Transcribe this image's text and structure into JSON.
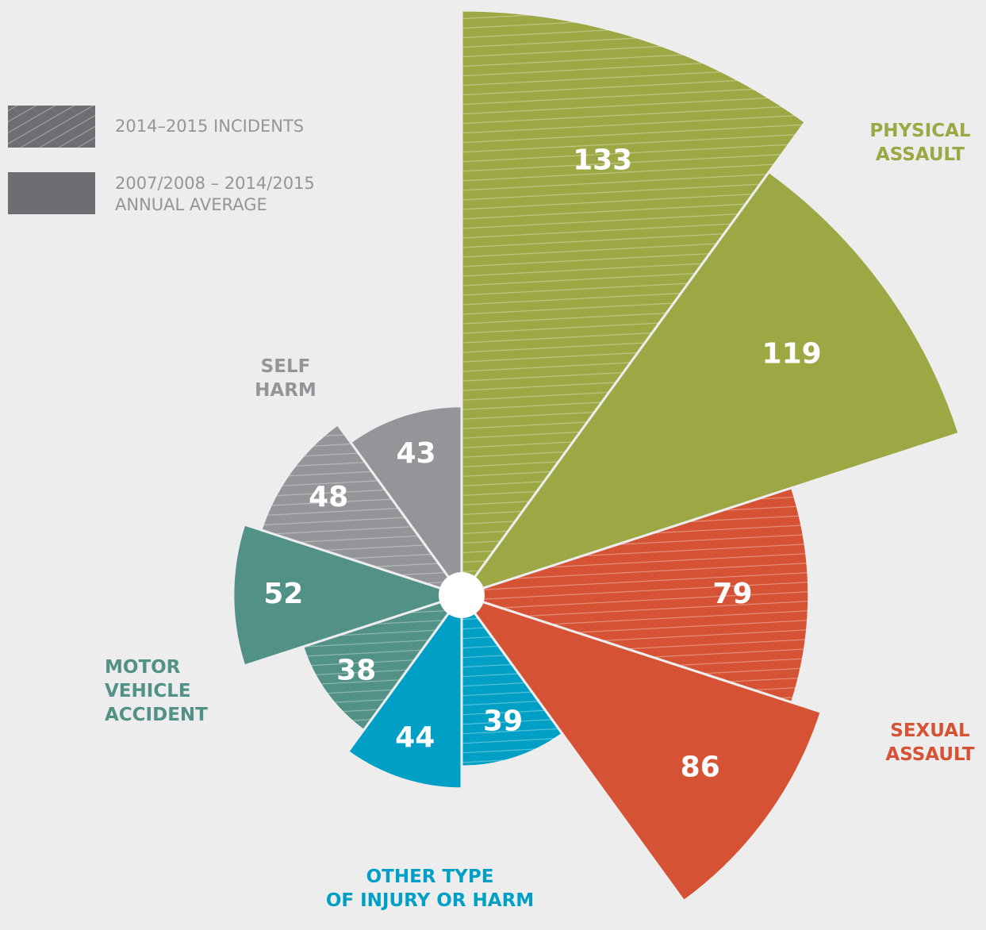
{
  "chart_data": {
    "type": "polar_area",
    "categories": [
      "PHYSICAL\nASSAULT",
      "SEXUAL\nASSAULT",
      "OTHER TYPE\nOF INJURY OR HARM",
      "MOTOR\nVEHICLE\nACCIDENT",
      "SELF\nHARM"
    ],
    "category_colors": [
      "#9ca843",
      "#d55334",
      "#00a0c6",
      "#529185",
      "#939598"
    ],
    "series": [
      {
        "name": "2014–2015 INCIDENTS",
        "style": "hatched",
        "color": "#6d6e71",
        "values": [
          133,
          79,
          39,
          38,
          48
        ]
      },
      {
        "name": "2007/2008 – 2014/2015\nANNUAL AVERAGE",
        "style": "solid",
        "color": "#6d6e71",
        "values": [
          119,
          86,
          44,
          52,
          43
        ]
      }
    ]
  }
}
